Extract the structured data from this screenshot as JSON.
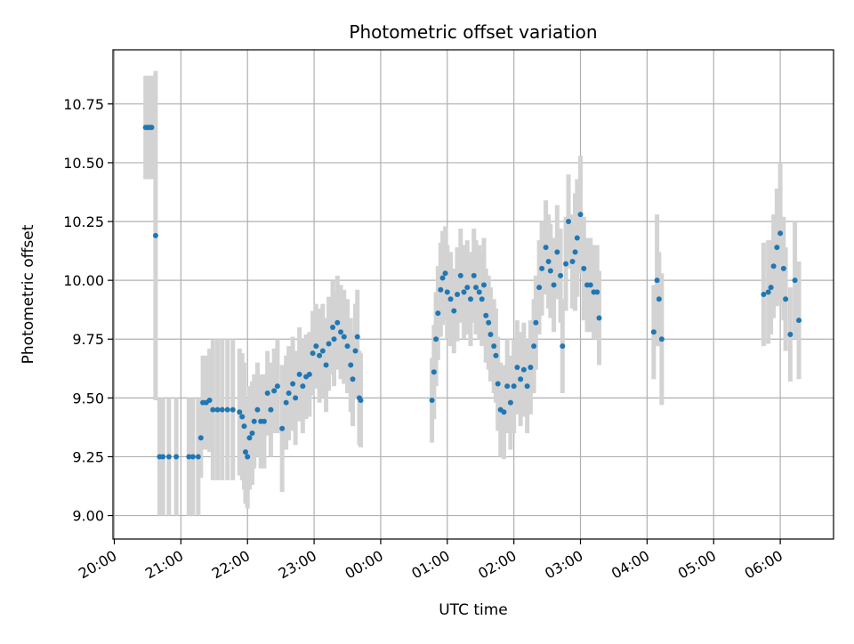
{
  "chart_data": {
    "type": "scatter",
    "title": "Photometric offset variation",
    "xlabel": "UTC time",
    "ylabel": "Photometric offset",
    "x_unit": "hours of UTC day, axis starts 20:00; values after midnight written as 24.x (00:00 = 24.0)",
    "xlim": [
      19.98,
      30.8
    ],
    "ylim": [
      8.9,
      10.98
    ],
    "x_ticks": [
      {
        "value": 20,
        "label": "20:00"
      },
      {
        "value": 21,
        "label": "21:00"
      },
      {
        "value": 22,
        "label": "22:00"
      },
      {
        "value": 23,
        "label": "23:00"
      },
      {
        "value": 24,
        "label": "00:00"
      },
      {
        "value": 25,
        "label": "01:00"
      },
      {
        "value": 26,
        "label": "02:00"
      },
      {
        "value": 27,
        "label": "03:00"
      },
      {
        "value": 28,
        "label": "04:00"
      },
      {
        "value": 29,
        "label": "05:00"
      },
      {
        "value": 30,
        "label": "06:00"
      }
    ],
    "y_ticks": [
      {
        "value": 9.0,
        "label": "9.00"
      },
      {
        "value": 9.25,
        "label": "9.25"
      },
      {
        "value": 9.5,
        "label": "9.50"
      },
      {
        "value": 9.75,
        "label": "9.75"
      },
      {
        "value": 10.0,
        "label": "10.00"
      },
      {
        "value": 10.25,
        "label": "10.25"
      },
      {
        "value": 10.5,
        "label": "10.50"
      },
      {
        "value": 10.75,
        "label": "10.75"
      }
    ],
    "grid": true,
    "legend": "none",
    "marker_color": "#1f77b4",
    "errorbar_color": "#d3d3d3",
    "points": [
      [
        20.47,
        10.65,
        0.22
      ],
      [
        20.5,
        10.65,
        0.22
      ],
      [
        20.53,
        10.65,
        0.22
      ],
      [
        20.56,
        10.65,
        0.22
      ],
      [
        20.62,
        10.19,
        0.7
      ],
      [
        20.68,
        9.25,
        0.25
      ],
      [
        20.73,
        9.25,
        0.25
      ],
      [
        20.82,
        9.25,
        0.25
      ],
      [
        20.93,
        9.25,
        0.25
      ],
      [
        21.12,
        9.25,
        0.25
      ],
      [
        21.18,
        9.25,
        0.25
      ],
      [
        21.26,
        9.25,
        0.25
      ],
      [
        21.3,
        9.33,
        0.17
      ],
      [
        21.33,
        9.48,
        0.2
      ],
      [
        21.38,
        9.48,
        0.2
      ],
      [
        21.43,
        9.49,
        0.22
      ],
      [
        21.48,
        9.45,
        0.3
      ],
      [
        21.55,
        9.45,
        0.3
      ],
      [
        21.62,
        9.45,
        0.3
      ],
      [
        21.7,
        9.45,
        0.3
      ],
      [
        21.78,
        9.45,
        0.3
      ],
      [
        21.88,
        9.44,
        0.27
      ],
      [
        21.92,
        9.42,
        0.27
      ],
      [
        21.95,
        9.38,
        0.27
      ],
      [
        21.97,
        9.27,
        0.22
      ],
      [
        22.0,
        9.25,
        0.22
      ],
      [
        22.03,
        9.33,
        0.22
      ],
      [
        22.07,
        9.35,
        0.22
      ],
      [
        22.1,
        9.4,
        0.2
      ],
      [
        22.15,
        9.45,
        0.2
      ],
      [
        22.2,
        9.4,
        0.2
      ],
      [
        22.25,
        9.4,
        0.2
      ],
      [
        22.3,
        9.52,
        0.18
      ],
      [
        22.35,
        9.45,
        0.2
      ],
      [
        22.4,
        9.53,
        0.18
      ],
      [
        22.45,
        9.55,
        0.2
      ],
      [
        22.52,
        9.37,
        0.27
      ],
      [
        22.58,
        9.48,
        0.2
      ],
      [
        22.62,
        9.52,
        0.2
      ],
      [
        22.68,
        9.56,
        0.2
      ],
      [
        22.72,
        9.5,
        0.2
      ],
      [
        22.78,
        9.6,
        0.2
      ],
      [
        22.83,
        9.55,
        0.2
      ],
      [
        22.88,
        9.59,
        0.18
      ],
      [
        22.93,
        9.6,
        0.18
      ],
      [
        22.98,
        9.69,
        0.18
      ],
      [
        23.03,
        9.72,
        0.18
      ],
      [
        23.08,
        9.68,
        0.2
      ],
      [
        23.13,
        9.7,
        0.2
      ],
      [
        23.18,
        9.64,
        0.2
      ],
      [
        23.22,
        9.73,
        0.2
      ],
      [
        23.28,
        9.8,
        0.2
      ],
      [
        23.3,
        9.75,
        0.2
      ],
      [
        23.35,
        9.82,
        0.2
      ],
      [
        23.4,
        9.78,
        0.2
      ],
      [
        23.45,
        9.76,
        0.2
      ],
      [
        23.5,
        9.72,
        0.2
      ],
      [
        23.55,
        9.64,
        0.2
      ],
      [
        23.58,
        9.58,
        0.2
      ],
      [
        23.62,
        9.7,
        0.2
      ],
      [
        23.65,
        9.76,
        0.2
      ],
      [
        23.68,
        9.5,
        0.2
      ],
      [
        23.7,
        9.49,
        0.2
      ],
      [
        24.77,
        9.49,
        0.18
      ],
      [
        24.8,
        9.61,
        0.2
      ],
      [
        24.83,
        9.75,
        0.2
      ],
      [
        24.86,
        9.86,
        0.2
      ],
      [
        24.9,
        9.96,
        0.2
      ],
      [
        24.93,
        10.01,
        0.2
      ],
      [
        24.97,
        10.03,
        0.2
      ],
      [
        25.0,
        9.95,
        0.2
      ],
      [
        25.05,
        9.92,
        0.2
      ],
      [
        25.1,
        9.87,
        0.18
      ],
      [
        25.15,
        9.94,
        0.2
      ],
      [
        25.2,
        10.02,
        0.2
      ],
      [
        25.25,
        9.95,
        0.2
      ],
      [
        25.3,
        9.97,
        0.2
      ],
      [
        25.35,
        9.92,
        0.2
      ],
      [
        25.4,
        10.02,
        0.2
      ],
      [
        25.43,
        9.97,
        0.2
      ],
      [
        25.48,
        9.95,
        0.2
      ],
      [
        25.52,
        9.92,
        0.2
      ],
      [
        25.55,
        9.98,
        0.2
      ],
      [
        25.58,
        9.85,
        0.2
      ],
      [
        25.62,
        9.82,
        0.2
      ],
      [
        25.65,
        9.77,
        0.2
      ],
      [
        25.7,
        9.72,
        0.2
      ],
      [
        25.73,
        9.68,
        0.2
      ],
      [
        25.76,
        9.56,
        0.2
      ],
      [
        25.8,
        9.45,
        0.2
      ],
      [
        25.85,
        9.44,
        0.2
      ],
      [
        25.9,
        9.55,
        0.2
      ],
      [
        25.95,
        9.48,
        0.2
      ],
      [
        26.0,
        9.55,
        0.2
      ],
      [
        26.05,
        9.63,
        0.2
      ],
      [
        26.1,
        9.58,
        0.2
      ],
      [
        26.15,
        9.62,
        0.2
      ],
      [
        26.2,
        9.55,
        0.2
      ],
      [
        26.25,
        9.63,
        0.2
      ],
      [
        26.3,
        9.72,
        0.2
      ],
      [
        26.33,
        9.82,
        0.2
      ],
      [
        26.38,
        9.97,
        0.2
      ],
      [
        26.42,
        10.05,
        0.2
      ],
      [
        26.48,
        10.14,
        0.2
      ],
      [
        26.52,
        10.08,
        0.2
      ],
      [
        26.55,
        10.04,
        0.2
      ],
      [
        26.6,
        9.98,
        0.2
      ],
      [
        26.65,
        10.12,
        0.2
      ],
      [
        26.7,
        10.02,
        0.2
      ],
      [
        26.73,
        9.72,
        0.2
      ],
      [
        26.78,
        10.07,
        0.2
      ],
      [
        26.82,
        10.25,
        0.2
      ],
      [
        26.88,
        10.08,
        0.2
      ],
      [
        26.92,
        10.12,
        0.25
      ],
      [
        26.95,
        10.18,
        0.25
      ],
      [
        27.0,
        10.28,
        0.25
      ],
      [
        27.05,
        10.05,
        0.22
      ],
      [
        27.1,
        9.98,
        0.2
      ],
      [
        27.15,
        9.98,
        0.2
      ],
      [
        27.2,
        9.95,
        0.2
      ],
      [
        27.25,
        9.95,
        0.2
      ],
      [
        27.28,
        9.84,
        0.2
      ],
      [
        28.1,
        9.78,
        0.2
      ],
      [
        28.15,
        10.0,
        0.28
      ],
      [
        28.18,
        9.92,
        0.2
      ],
      [
        28.22,
        9.75,
        0.28
      ],
      [
        29.75,
        9.94,
        0.22
      ],
      [
        29.82,
        9.95,
        0.22
      ],
      [
        29.86,
        9.97,
        0.2
      ],
      [
        29.9,
        10.06,
        0.22
      ],
      [
        29.95,
        10.14,
        0.25
      ],
      [
        30.0,
        10.2,
        0.3
      ],
      [
        30.05,
        10.05,
        0.22
      ],
      [
        30.08,
        9.92,
        0.22
      ],
      [
        30.15,
        9.77,
        0.2
      ],
      [
        30.22,
        10.0,
        0.25
      ],
      [
        30.28,
        9.83,
        0.25
      ]
    ]
  }
}
